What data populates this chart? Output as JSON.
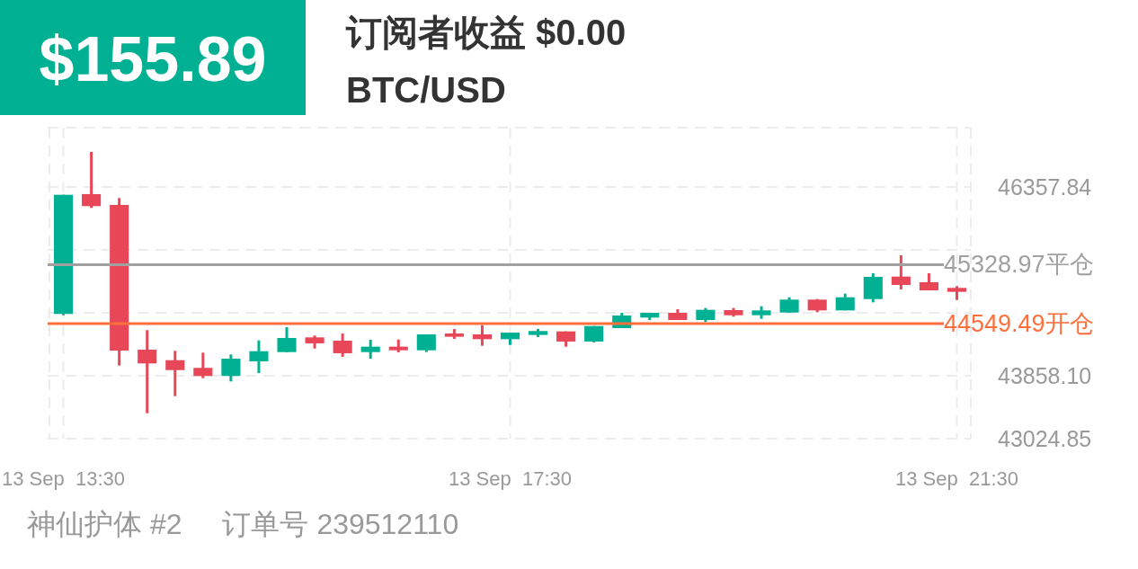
{
  "chart_data": {
    "type": "candlestick",
    "title": "订阅者收益 $0.00",
    "subtitle": "BTC/USD",
    "annotations": [
      "$155.89",
      "神仙护体 #2",
      "订单号 239512110"
    ],
    "categories": [
      "13 Sep  13:30",
      null,
      null,
      null,
      null,
      null,
      null,
      null,
      null,
      null,
      null,
      null,
      null,
      null,
      null,
      null,
      "13 Sep  17:30",
      null,
      null,
      null,
      null,
      null,
      null,
      null,
      null,
      null,
      null,
      null,
      null,
      null,
      null,
      null,
      "13 Sep  21:30"
    ],
    "ohlc": [
      [
        44676,
        46254,
        44659,
        46254
      ],
      [
        46263,
        46822,
        46080,
        46104
      ],
      [
        46120,
        46211,
        43993,
        44191
      ],
      [
        44203,
        44462,
        43362,
        44021
      ],
      [
        44064,
        44188,
        43588,
        43933
      ],
      [
        43962,
        44164,
        43826,
        43855
      ],
      [
        43855,
        44140,
        43783,
        44084
      ],
      [
        44049,
        44326,
        43894,
        44183
      ],
      [
        44171,
        44501,
        44171,
        44358
      ],
      [
        44366,
        44390,
        44218,
        44287
      ],
      [
        44322,
        44418,
        44108,
        44156
      ],
      [
        44171,
        44334,
        44084,
        44243
      ],
      [
        44243,
        44338,
        44168,
        44195
      ],
      [
        44195,
        44406,
        44171,
        44406
      ],
      [
        44418,
        44477,
        44346,
        44374
      ],
      [
        44406,
        44528,
        44255,
        44342
      ],
      [
        44342,
        44429,
        44266,
        44429
      ],
      [
        44398,
        44477,
        44370,
        44450
      ],
      [
        44445,
        44445,
        44243,
        44311
      ],
      [
        44311,
        44516,
        44300,
        44516
      ],
      [
        44489,
        44691,
        44489,
        44656
      ],
      [
        44628,
        44691,
        44596,
        44691
      ],
      [
        44691,
        44739,
        44596,
        44596
      ],
      [
        44596,
        44755,
        44569,
        44731
      ],
      [
        44727,
        44755,
        44640,
        44659
      ],
      [
        44659,
        44778,
        44612,
        44723
      ],
      [
        44695,
        44897,
        44695,
        44866
      ],
      [
        44866,
        44874,
        44699,
        44723
      ],
      [
        44723,
        44945,
        44723,
        44897
      ],
      [
        44873,
        45215,
        44830,
        45167
      ],
      [
        45171,
        45453,
        45001,
        45060
      ],
      [
        45096,
        45215,
        44989,
        44989
      ],
      [
        45021,
        45045,
        44861,
        44969
      ]
    ],
    "colors": [
      "#00b092",
      "#e84757",
      "#e84757",
      "#e84757",
      "#e84757",
      "#e84757",
      "#00b092",
      "#00b092",
      "#00b092",
      "#e84757",
      "#e84757",
      "#00b092",
      "#e84757",
      "#00b092",
      "#e84757",
      "#e84757",
      "#00b092",
      "#00b092",
      "#e84757",
      "#00b092",
      "#00b092",
      "#00b092",
      "#e84757",
      "#00b092",
      "#e84757",
      "#00b092",
      "#00b092",
      "#e84757",
      "#00b092",
      "#00b092",
      "#e84757",
      "#e84757",
      "#e84757"
    ],
    "ylim": [
      43024.85,
      47143
    ],
    "yticks": [
      {
        "value": 43024.85,
        "label": "43024.85"
      },
      {
        "value": 43858.1,
        "label": "43858.10"
      },
      {
        "value": 44691.34,
        "label": null
      },
      {
        "value": 45524.59,
        "label": null
      },
      {
        "value": 46357.84,
        "label": "46357.84"
      }
    ],
    "ref_lines": [
      {
        "axis": "y",
        "value": 45328.97,
        "label": "45328.97平仓",
        "color": "#a0a0a0"
      },
      {
        "axis": "y",
        "value": 44549.49,
        "label": "44549.49开仓",
        "color": "#ff6f3c"
      }
    ],
    "grid": true
  }
}
